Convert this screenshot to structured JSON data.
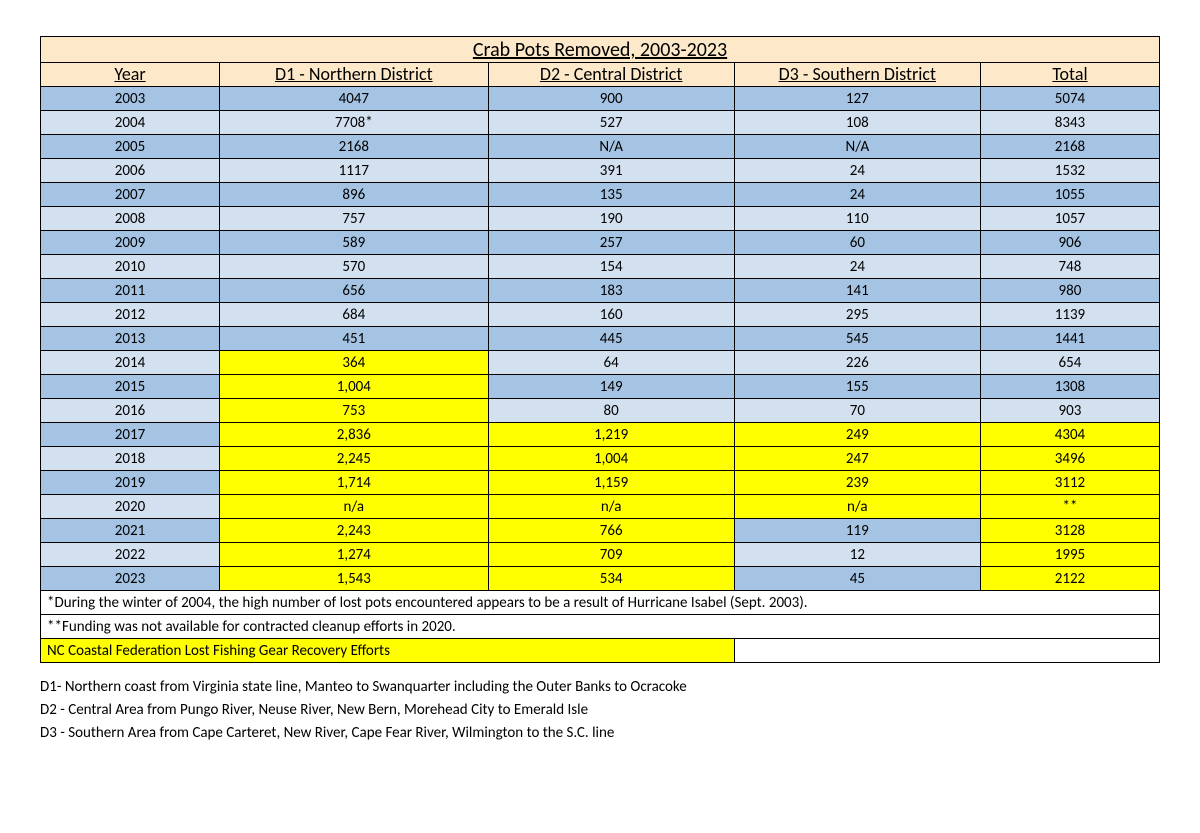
{
  "title": "Crab Pots Removed, 2003-2023",
  "headers": [
    "Year",
    "D1 - Northern District",
    "D2 - Central District",
    "D3 - Southern District",
    "Total"
  ],
  "col_widths_pct": [
    16,
    24,
    22,
    22,
    16
  ],
  "colors": {
    "title_bg": "#fde9c9",
    "header_bg": "#fde9c9",
    "row_alt_a": "#a5c4e3",
    "row_alt_b": "#d2e0ef",
    "highlight": "#ffff00",
    "note_bg": "#ffffff",
    "border": "#000000"
  },
  "rows": [
    {
      "cells": [
        "2003",
        "4047",
        "900",
        "127",
        "5074"
      ],
      "hl": [
        false,
        false,
        false,
        false,
        false
      ]
    },
    {
      "cells": [
        "2004",
        "7708*",
        "527",
        "108",
        "8343"
      ],
      "hl": [
        false,
        false,
        false,
        false,
        false
      ]
    },
    {
      "cells": [
        "2005",
        "2168",
        "N/A",
        "N/A",
        "2168"
      ],
      "hl": [
        false,
        false,
        false,
        false,
        false
      ]
    },
    {
      "cells": [
        "2006",
        "1117",
        "391",
        "24",
        "1532"
      ],
      "hl": [
        false,
        false,
        false,
        false,
        false
      ]
    },
    {
      "cells": [
        "2007",
        "896",
        "135",
        "24",
        "1055"
      ],
      "hl": [
        false,
        false,
        false,
        false,
        false
      ]
    },
    {
      "cells": [
        "2008",
        "757",
        "190",
        "110",
        "1057"
      ],
      "hl": [
        false,
        false,
        false,
        false,
        false
      ]
    },
    {
      "cells": [
        "2009",
        "589",
        "257",
        "60",
        "906"
      ],
      "hl": [
        false,
        false,
        false,
        false,
        false
      ]
    },
    {
      "cells": [
        "2010",
        "570",
        "154",
        "24",
        "748"
      ],
      "hl": [
        false,
        false,
        false,
        false,
        false
      ]
    },
    {
      "cells": [
        "2011",
        "656",
        "183",
        "141",
        "980"
      ],
      "hl": [
        false,
        false,
        false,
        false,
        false
      ]
    },
    {
      "cells": [
        "2012",
        "684",
        "160",
        "295",
        "1139"
      ],
      "hl": [
        false,
        false,
        false,
        false,
        false
      ]
    },
    {
      "cells": [
        "2013",
        "451",
        "445",
        "545",
        "1441"
      ],
      "hl": [
        false,
        false,
        false,
        false,
        false
      ]
    },
    {
      "cells": [
        "2014",
        "364",
        "64",
        "226",
        "654"
      ],
      "hl": [
        false,
        true,
        false,
        false,
        false
      ]
    },
    {
      "cells": [
        "2015",
        "1,004",
        "149",
        "155",
        "1308"
      ],
      "hl": [
        false,
        true,
        false,
        false,
        false
      ]
    },
    {
      "cells": [
        "2016",
        "753",
        "80",
        "70",
        "903"
      ],
      "hl": [
        false,
        true,
        false,
        false,
        false
      ]
    },
    {
      "cells": [
        "2017",
        "2,836",
        "1,219",
        "249",
        "4304"
      ],
      "hl": [
        false,
        true,
        true,
        true,
        true
      ]
    },
    {
      "cells": [
        "2018",
        "2,245",
        "1,004",
        "247",
        "3496"
      ],
      "hl": [
        false,
        true,
        true,
        true,
        true
      ]
    },
    {
      "cells": [
        "2019",
        "1,714",
        "1,159",
        "239",
        "3112"
      ],
      "hl": [
        false,
        true,
        true,
        true,
        true
      ]
    },
    {
      "cells": [
        "2020",
        "n/a",
        "n/a",
        "n/a",
        "**"
      ],
      "hl": [
        false,
        true,
        true,
        true,
        true
      ]
    },
    {
      "cells": [
        "2021",
        "2,243",
        "766",
        "119",
        "3128"
      ],
      "hl": [
        false,
        true,
        true,
        false,
        true
      ]
    },
    {
      "cells": [
        "2022",
        "1,274",
        "709",
        "12",
        "1995"
      ],
      "hl": [
        false,
        true,
        true,
        false,
        true
      ]
    },
    {
      "cells": [
        "2023",
        "1,543",
        "534",
        "45",
        "2122"
      ],
      "hl": [
        false,
        true,
        true,
        false,
        true
      ]
    }
  ],
  "notes": [
    "*During the winter of 2004, the high number of lost pots encountered appears to be a result of Hurricane Isabel (Sept. 2003).",
    "**Funding was not available for contracted cleanup efforts in 2020."
  ],
  "legend_text": "NC Coastal Federation Lost Fishing Gear Recovery Efforts",
  "footer": [
    "D1- Northern coast from Virginia state line, Manteo to Swanquarter including the Outer Banks to Ocracoke",
    "D2 - Central Area from Pungo River, Neuse River, New Bern, Morehead City to Emerald Isle",
    "D3 - Southern Area from Cape Carteret, New River, Cape Fear River, Wilmington to the S.C. line"
  ]
}
